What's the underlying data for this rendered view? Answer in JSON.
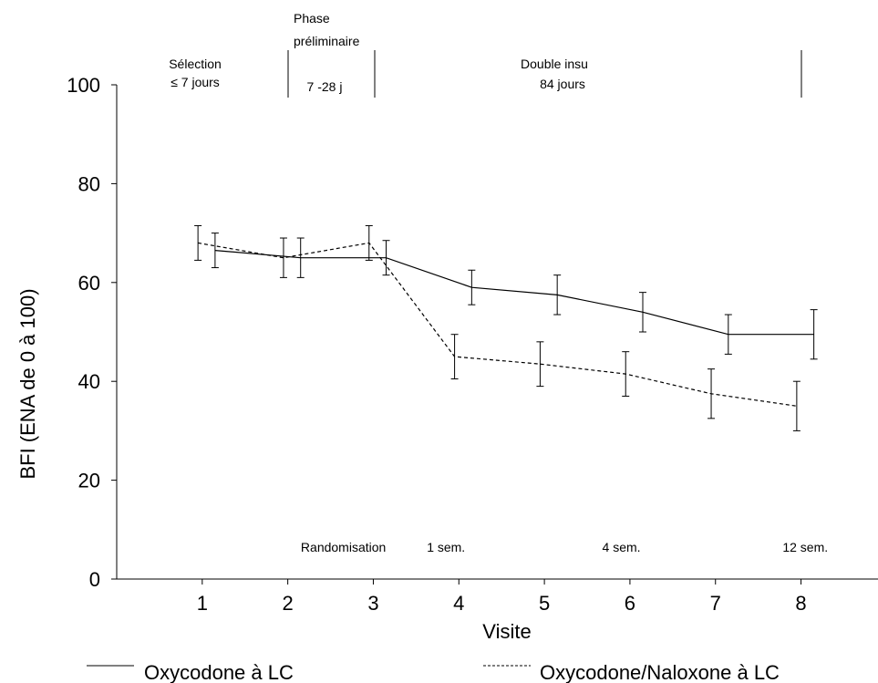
{
  "chart_data": {
    "type": "line",
    "title": "",
    "xlabel": "Visite",
    "ylabel": "BFI (ENA de 0 à 100)",
    "ylim": [
      0,
      100
    ],
    "xlim": [
      0,
      8.9
    ],
    "yticks": [
      0,
      20,
      40,
      60,
      80,
      100
    ],
    "x": [
      1,
      2,
      3,
      4,
      5,
      6,
      7,
      8
    ],
    "legend_position": "bottom",
    "series": [
      {
        "name": "Oxycodone à LC",
        "style": "solid",
        "color": "#000000",
        "x_offset": 0.15,
        "values": [
          66.5,
          65,
          65,
          59,
          57.5,
          54,
          49.5,
          49.5
        ],
        "error": [
          3.5,
          4,
          3.5,
          3.5,
          4,
          4,
          4,
          5
        ]
      },
      {
        "name": "Oxycodone/Naloxone à LC",
        "style": "dashed",
        "color": "#000000",
        "x_offset": -0.05,
        "values": [
          68,
          65,
          68,
          45,
          43.5,
          41.5,
          37.5,
          35
        ],
        "error": [
          3.5,
          4,
          3.5,
          4.5,
          4.5,
          4.5,
          5,
          5
        ]
      }
    ],
    "phases": [
      {
        "lines": [
          "Sélection",
          "≤ 7 jours"
        ]
      },
      {
        "lines": [
          "Phase",
          "préliminaire",
          "7 -28 j"
        ]
      },
      {
        "lines": [
          "Double insu",
          "84 jours"
        ]
      }
    ],
    "annotations": [
      {
        "text": "Randomisation",
        "x": 2.65
      },
      {
        "text": "1 sem.",
        "x": 3.85
      },
      {
        "text": "4 sem.",
        "x": 5.9
      },
      {
        "text": "12 sem.",
        "x": 8.05
      }
    ]
  }
}
